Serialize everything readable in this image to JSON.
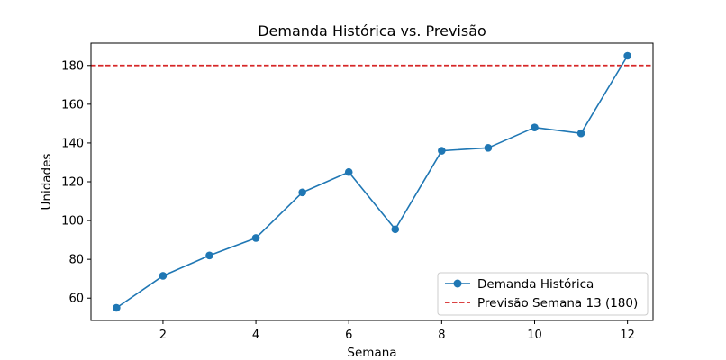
{
  "chart_data": {
    "type": "line",
    "title": "Demanda Histórica vs. Previsão",
    "xlabel": "Semana",
    "ylabel": "Unidades",
    "xlim": [
      0.45,
      12.55
    ],
    "ylim": [
      48.5,
      191.5
    ],
    "xticks": [
      2,
      4,
      6,
      8,
      10,
      12
    ],
    "yticks": [
      60,
      80,
      100,
      120,
      140,
      160,
      180
    ],
    "grid": false,
    "legend_position": "lower-right",
    "series": [
      {
        "name": "Demanda Histórica",
        "style": "line-marker",
        "color": "#1f77b4",
        "x": [
          1,
          2,
          3,
          4,
          5,
          6,
          7,
          8,
          9,
          10,
          11,
          12
        ],
        "y": [
          55,
          71.5,
          82,
          91,
          114.5,
          125,
          95.5,
          136,
          137.5,
          148,
          145,
          185
        ]
      },
      {
        "name": "Previsão Semana 13 (180)",
        "style": "dashed-hline",
        "color": "#d62728",
        "y": 180
      }
    ]
  }
}
